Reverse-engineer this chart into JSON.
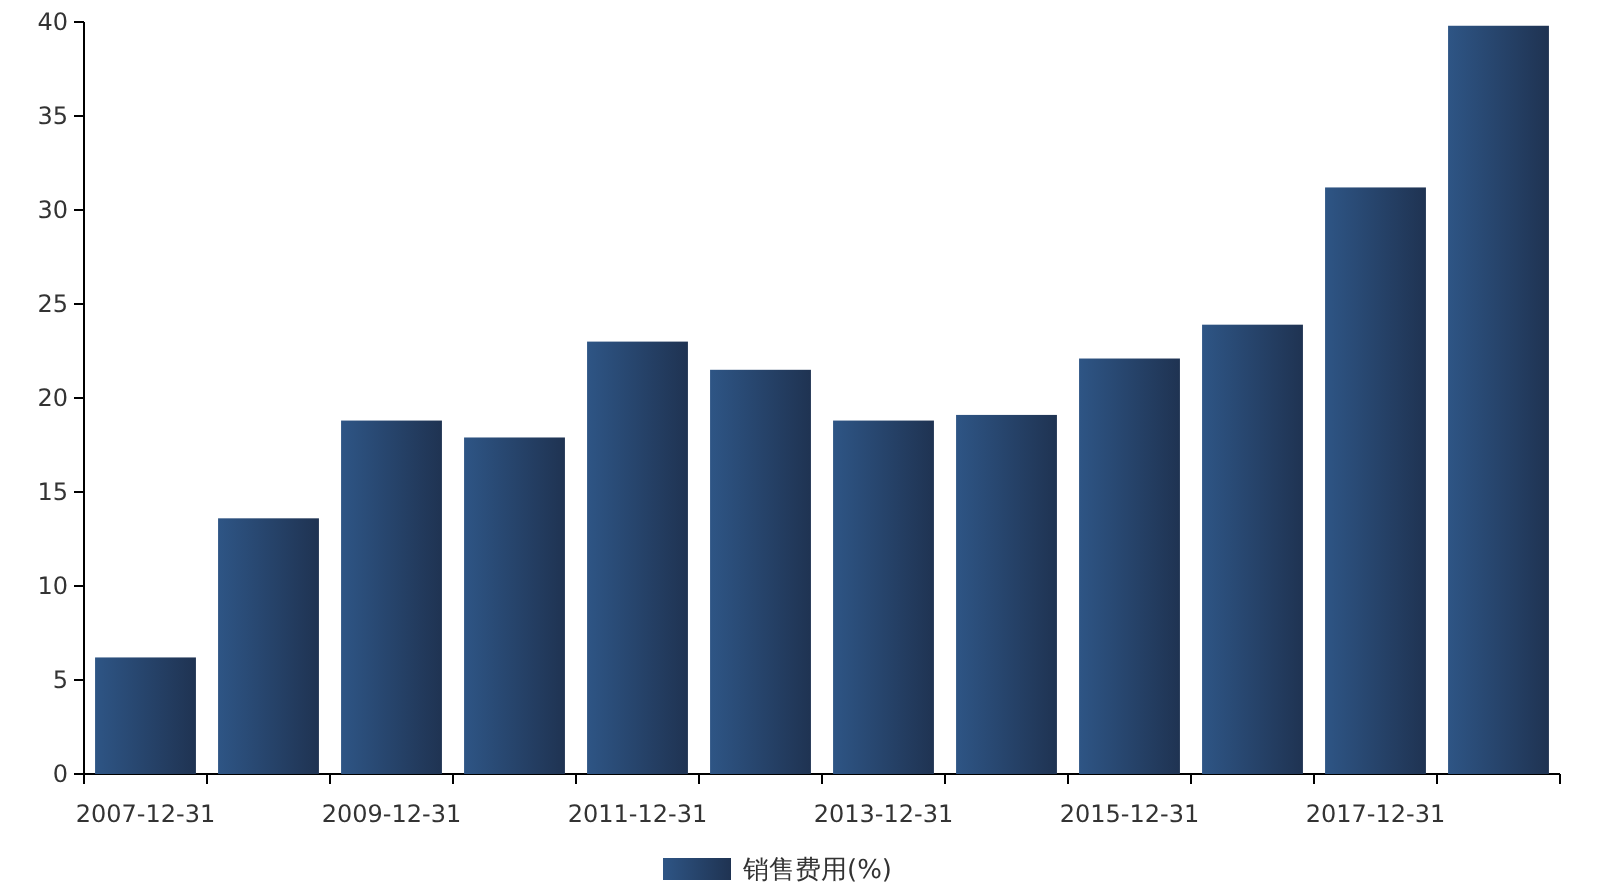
{
  "chart_data": {
    "type": "bar",
    "categories": [
      "2007-12-31",
      null,
      "2009-12-31",
      null,
      "2011-12-31",
      null,
      "2013-12-31",
      null,
      "2015-12-31",
      null,
      "2017-12-31",
      null
    ],
    "series": [
      {
        "name": "销售费用(%)",
        "color": "#2e5585",
        "values": [
          6.2,
          13.6,
          18.8,
          17.9,
          23.0,
          21.5,
          18.8,
          19.1,
          22.1,
          23.9,
          31.2,
          39.8
        ]
      }
    ],
    "ylim": [
      0,
      40
    ],
    "yticks": [
      0,
      5,
      10,
      15,
      20,
      25,
      30,
      35,
      40
    ],
    "grid": false,
    "legend": "bottom"
  }
}
